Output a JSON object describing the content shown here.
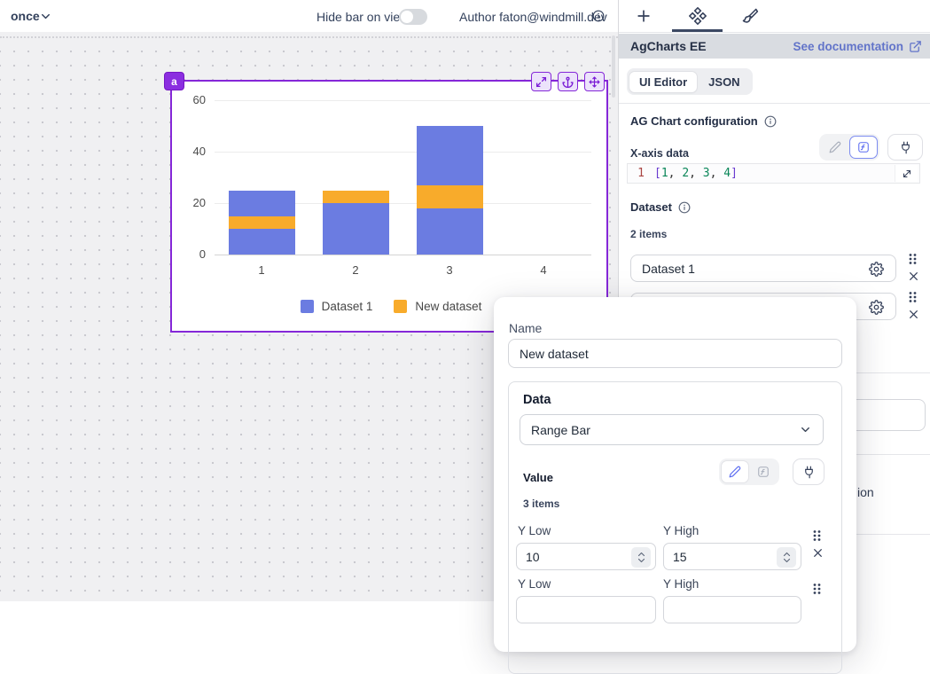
{
  "topbar": {
    "schedule_label": "once",
    "hide_bar_label": "Hide bar on view",
    "author_label": "Author faton@windmill.dev"
  },
  "panel": {
    "header": {
      "title": "AgCharts EE",
      "doc_link": "See documentation"
    },
    "editor_tabs": {
      "ui_editor": "UI Editor",
      "json": "JSON"
    },
    "config_title": "AG Chart configuration",
    "xaxis": {
      "label": "X-axis data",
      "line_number": "1",
      "code_tokens": [
        {
          "text": "[",
          "type": "bracket"
        },
        {
          "text": "1",
          "type": "num"
        },
        {
          "text": ", ",
          "type": "punct"
        },
        {
          "text": "2",
          "type": "num"
        },
        {
          "text": ", ",
          "type": "punct"
        },
        {
          "text": "3",
          "type": "num"
        },
        {
          "text": ", ",
          "type": "punct"
        },
        {
          "text": "4",
          "type": "num"
        },
        {
          "text": "]",
          "type": "bracket"
        }
      ]
    },
    "dataset": {
      "label": "Dataset",
      "count": "2 items",
      "items": [
        {
          "name": "Dataset 1"
        },
        {
          "name": ""
        }
      ]
    },
    "truncated_label_fragment": "ion"
  },
  "modal": {
    "name_label": "Name",
    "name_value": "New dataset",
    "data_label": "Data",
    "data_type_value": "Range Bar",
    "value_label": "Value",
    "value_count": "3 items",
    "rows": [
      {
        "y_low_label": "Y Low",
        "y_low": "10",
        "y_high_label": "Y High",
        "y_high": "15"
      },
      {
        "y_low_label": "Y Low",
        "y_low": "",
        "y_high_label": "Y High",
        "y_high": ""
      }
    ]
  },
  "component": {
    "id": "a"
  },
  "chart_data": {
    "type": "bar",
    "x": [
      1,
      2,
      3,
      4
    ],
    "series": [
      {
        "name": "Dataset 1",
        "type": "bar",
        "color": "#6b7ce1",
        "values": [
          25,
          20,
          50,
          null
        ]
      },
      {
        "name": "New dataset",
        "type": "range-bar",
        "color": "#f8ab2b",
        "ranges": [
          [
            10,
            15
          ],
          [
            20,
            25
          ],
          [
            18,
            27
          ],
          null
        ]
      }
    ],
    "ylim": [
      0,
      60
    ],
    "yticks": [
      0,
      20,
      40,
      60
    ],
    "grid": true,
    "legend_position": "bottom"
  },
  "colors": {
    "selection_purple": "#8527d8",
    "accent_indigo": "#6274c9",
    "bar_blue": "#6b7ce1",
    "bar_orange": "#f8ab2b"
  }
}
